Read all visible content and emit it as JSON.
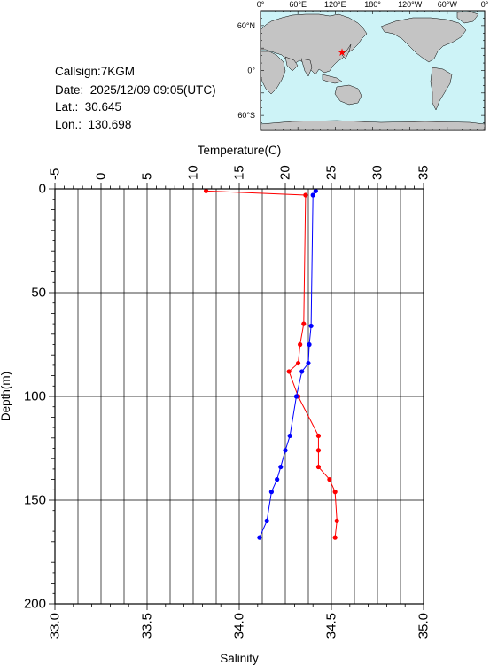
{
  "info": {
    "callsign": "Callsign:7KGM",
    "date": "Date:  2025/12/09 09:05(UTC)",
    "lat": "Lat.:  30.645",
    "lon": "Lon.:  130.698"
  },
  "map": {
    "top_labels": [
      "0°",
      "60°E",
      "120°E",
      "180°",
      "120°W",
      "60°W",
      "0°"
    ],
    "left_labels": [
      "60°N",
      "0°",
      "60°S"
    ],
    "ocean_color": "#cdf3f7",
    "land_color": "#c4c4c4",
    "marker_color": "#ff0000",
    "marker_icon": "star-icon"
  },
  "chart_data": {
    "type": "line",
    "xlabel_top": "Temperature(C)",
    "xlabel_bottom": "Salinity",
    "ylabel": "Depth(m)",
    "temperature_axis": {
      "range": [
        -5,
        35
      ],
      "ticks": [
        "-5",
        "0",
        "5",
        "10",
        "15",
        "20",
        "25",
        "30",
        "35"
      ]
    },
    "salinity_axis": {
      "range": [
        33.0,
        35.0
      ],
      "ticks": [
        "33.0",
        "33.5",
        "34.0",
        "34.5",
        "35.0"
      ]
    },
    "depth_axis": {
      "range": [
        0,
        200
      ],
      "ticks": [
        "0",
        "50",
        "100",
        "150",
        "200"
      ],
      "inverted": true
    },
    "grid": true,
    "series": [
      {
        "color": "#ff0000",
        "axis": "salinity",
        "points": [
          [
            33.82,
            1
          ],
          [
            34.36,
            3
          ],
          [
            34.35,
            65
          ],
          [
            34.33,
            75
          ],
          [
            34.32,
            84
          ],
          [
            34.27,
            88
          ],
          [
            34.32,
            100
          ],
          [
            34.43,
            119
          ],
          [
            34.43,
            126
          ],
          [
            34.43,
            134
          ],
          [
            34.49,
            140
          ],
          [
            34.52,
            146
          ],
          [
            34.53,
            160
          ],
          [
            34.52,
            168
          ]
        ]
      },
      {
        "color": "#0000ff",
        "axis": "temperature",
        "points": [
          [
            23.3,
            1
          ],
          [
            23.0,
            3
          ],
          [
            22.8,
            66
          ],
          [
            22.6,
            75
          ],
          [
            22.5,
            84
          ],
          [
            21.8,
            88
          ],
          [
            21.2,
            100
          ],
          [
            20.5,
            119
          ],
          [
            20.0,
            126
          ],
          [
            19.5,
            134
          ],
          [
            19.1,
            140
          ],
          [
            18.5,
            146
          ],
          [
            18.0,
            160
          ],
          [
            17.2,
            168
          ]
        ]
      }
    ]
  }
}
